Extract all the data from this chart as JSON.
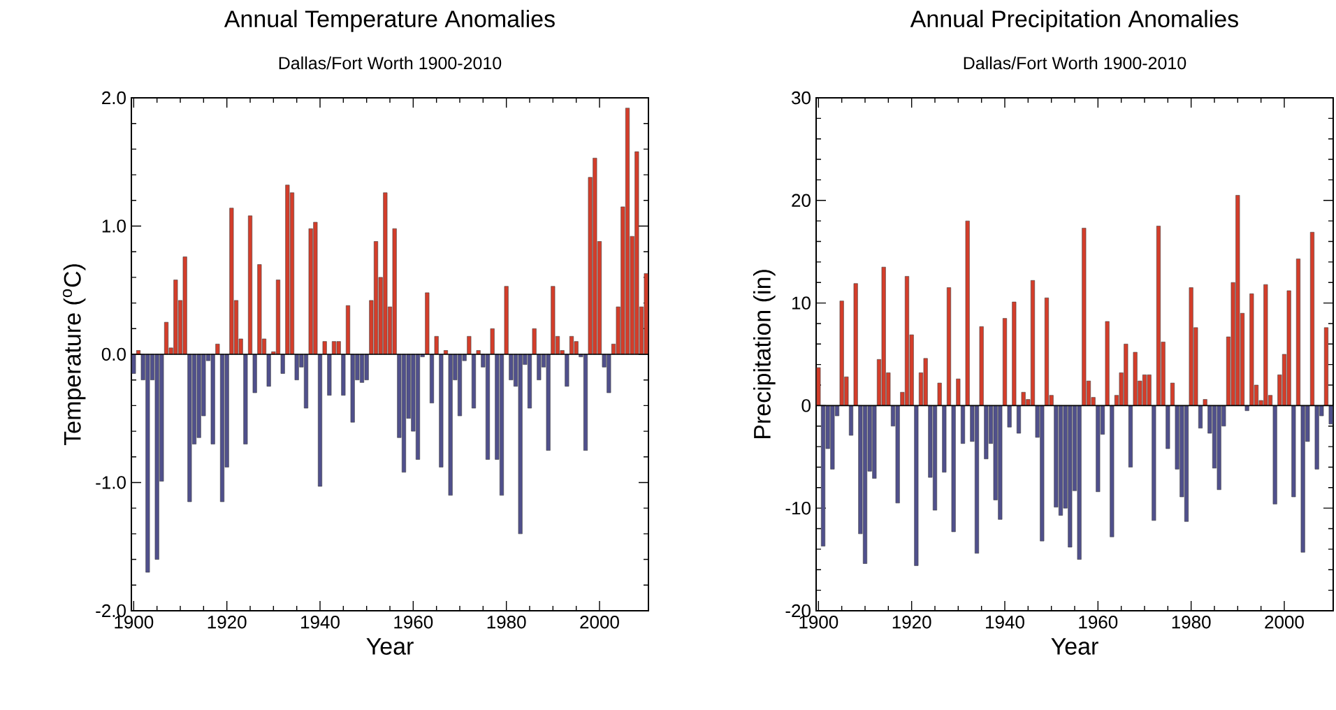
{
  "chart_data": [
    {
      "type": "bar",
      "title": "Annual Temperature Anomalies",
      "subtitle": "Dallas/Fort Worth 1900-2010",
      "xlabel": "Year",
      "ylabel": "Temperature ($^{o}$C)",
      "xlim": [
        1899.5,
        2010.5
      ],
      "xticks": [
        1900,
        1920,
        1940,
        1960,
        1980,
        2000
      ],
      "ylim": [
        -2,
        2
      ],
      "yticks": [
        {
          "value": -2,
          "label": "-2.0"
        },
        {
          "value": -1,
          "label": "-1.0"
        },
        {
          "value": 0,
          "label": "0.0"
        },
        {
          "value": 1,
          "label": "1.0"
        },
        {
          "value": 2,
          "label": "2.0"
        }
      ],
      "x": [
        1900,
        1901,
        1902,
        1903,
        1904,
        1905,
        1906,
        1907,
        1908,
        1909,
        1910,
        1911,
        1912,
        1913,
        1914,
        1915,
        1916,
        1917,
        1918,
        1919,
        1920,
        1921,
        1922,
        1923,
        1924,
        1925,
        1926,
        1927,
        1928,
        1929,
        1930,
        1931,
        1932,
        1933,
        1934,
        1935,
        1936,
        1937,
        1938,
        1939,
        1940,
        1941,
        1942,
        1943,
        1944,
        1945,
        1946,
        1947,
        1948,
        1949,
        1950,
        1951,
        1952,
        1953,
        1954,
        1955,
        1956,
        1957,
        1958,
        1959,
        1960,
        1961,
        1962,
        1963,
        1964,
        1965,
        1966,
        1967,
        1968,
        1969,
        1970,
        1971,
        1972,
        1973,
        1974,
        1975,
        1976,
        1977,
        1978,
        1979,
        1980,
        1981,
        1982,
        1983,
        1984,
        1985,
        1986,
        1987,
        1988,
        1989,
        1990,
        1991,
        1992,
        1993,
        1994,
        1995,
        1996,
        1997,
        1998,
        1999,
        2000,
        2001,
        2002,
        2003,
        2004,
        2005,
        2006,
        2007,
        2008,
        2009,
        2010
      ],
      "values": [
        -0.15,
        0.03,
        -0.2,
        -1.7,
        -0.2,
        -1.6,
        -0.99,
        0.25,
        0.05,
        0.58,
        0.42,
        0.76,
        -1.15,
        -0.7,
        -0.65,
        -0.48,
        -0.05,
        -0.7,
        0.08,
        -1.15,
        -0.88,
        1.14,
        0.42,
        0.12,
        -0.7,
        1.08,
        -0.3,
        0.7,
        0.12,
        -0.25,
        0.02,
        0.58,
        -0.15,
        1.32,
        1.26,
        -0.2,
        -0.1,
        -0.42,
        0.98,
        1.03,
        -1.03,
        0.1,
        -0.32,
        0.1,
        0.1,
        -0.32,
        0.38,
        -0.53,
        -0.2,
        -0.22,
        -0.2,
        0.42,
        0.88,
        0.6,
        1.26,
        0.37,
        0.98,
        -0.65,
        -0.92,
        -0.5,
        -0.6,
        -0.82,
        -0.02,
        0.48,
        -0.38,
        0.14,
        -0.88,
        0.03,
        -1.1,
        -0.2,
        -0.48,
        -0.05,
        0.14,
        -0.42,
        0.03,
        -0.1,
        -0.82,
        0.2,
        -0.82,
        -1.1,
        0.53,
        -0.2,
        -0.25,
        -1.4,
        -0.08,
        -0.42,
        0.2,
        -0.2,
        -0.1,
        -0.75,
        0.53,
        0.14,
        0.03,
        -0.25,
        0.14,
        0.1,
        -0.02,
        -0.75,
        1.38,
        1.53,
        0.88,
        -0.1,
        -0.3,
        0.08,
        0.37,
        1.15,
        1.92,
        0.92,
        1.58,
        0.37,
        0.63
      ],
      "colors": [
        "#50508c",
        "#d43d2a",
        "#50508c",
        "#50508c",
        "#50508c",
        "#50508c",
        "#50508c",
        "#d43d2a",
        "#d43d2a",
        "#d43d2a",
        "#d43d2a",
        "#d43d2a",
        "#50508c",
        "#50508c",
        "#50508c",
        "#50508c",
        "#50508c",
        "#50508c",
        "#d43d2a",
        "#50508c",
        "#50508c",
        "#d43d2a",
        "#d43d2a",
        "#d43d2a",
        "#50508c",
        "#d43d2a",
        "#50508c",
        "#d43d2a",
        "#d43d2a",
        "#50508c",
        "#d43d2a",
        "#d43d2a",
        "#50508c",
        "#d43d2a",
        "#d43d2a",
        "#50508c",
        "#50508c",
        "#50508c",
        "#d43d2a",
        "#d43d2a",
        "#50508c",
        "#d43d2a",
        "#50508c",
        "#d43d2a",
        "#d43d2a",
        "#50508c",
        "#d43d2a",
        "#50508c",
        "#50508c",
        "#50508c",
        "#50508c",
        "#d43d2a",
        "#d43d2a",
        "#d43d2a",
        "#d43d2a",
        "#d43d2a",
        "#d43d2a",
        "#50508c",
        "#50508c",
        "#50508c",
        "#50508c",
        "#50508c",
        "#50508c",
        "#d43d2a",
        "#50508c",
        "#d43d2a",
        "#50508c",
        "#d43d2a",
        "#50508c",
        "#50508c",
        "#50508c",
        "#50508c",
        "#d43d2a",
        "#50508c",
        "#d43d2a",
        "#50508c",
        "#50508c",
        "#d43d2a",
        "#50508c",
        "#50508c",
        "#d43d2a",
        "#50508c",
        "#50508c",
        "#50508c",
        "#50508c",
        "#50508c",
        "#d43d2a",
        "#50508c",
        "#50508c",
        "#50508c",
        "#d43d2a",
        "#d43d2a",
        "#d43d2a",
        "#50508c",
        "#d43d2a",
        "#d43d2a",
        "#50508c",
        "#50508c",
        "#d43d2a",
        "#d43d2a",
        "#d43d2a",
        "#50508c",
        "#50508c",
        "#d43d2a",
        "#d43d2a",
        "#d43d2a",
        "#d43d2a",
        "#d43d2a",
        "#d43d2a",
        "#d43d2a",
        "#d43d2a"
      ]
    },
    {
      "type": "bar",
      "title": "Annual Precipitation Anomalies",
      "subtitle": "Dallas/Fort Worth 1900-2010",
      "xlabel": "Year",
      "ylabel": "Precipitation (in)",
      "xlim": [
        1899.5,
        2010.5
      ],
      "xticks": [
        1900,
        1920,
        1940,
        1960,
        1980,
        2000
      ],
      "ylim": [
        -20,
        30
      ],
      "yticks": [
        -20,
        -10,
        0,
        10,
        20,
        30
      ],
      "x": [
        1900,
        1901,
        1902,
        1903,
        1904,
        1905,
        1906,
        1907,
        1908,
        1909,
        1910,
        1911,
        1912,
        1913,
        1914,
        1915,
        1916,
        1917,
        1918,
        1919,
        1920,
        1921,
        1922,
        1923,
        1924,
        1925,
        1926,
        1927,
        1928,
        1929,
        1930,
        1931,
        1932,
        1933,
        1934,
        1935,
        1936,
        1937,
        1938,
        1939,
        1940,
        1941,
        1942,
        1943,
        1944,
        1945,
        1946,
        1947,
        1948,
        1949,
        1950,
        1951,
        1952,
        1953,
        1954,
        1955,
        1956,
        1957,
        1958,
        1959,
        1960,
        1961,
        1962,
        1963,
        1964,
        1965,
        1966,
        1967,
        1968,
        1969,
        1970,
        1971,
        1972,
        1973,
        1974,
        1975,
        1976,
        1977,
        1978,
        1979,
        1980,
        1981,
        1982,
        1983,
        1984,
        1985,
        1986,
        1987,
        1988,
        1989,
        1990,
        1991,
        1992,
        1993,
        1994,
        1995,
        1996,
        1997,
        1998,
        1999,
        2000,
        2001,
        2002,
        2003,
        2004,
        2005,
        2006,
        2007,
        2008,
        2009,
        2010
      ],
      "values": [
        3.7,
        -13.7,
        -4.2,
        -6.2,
        -1.0,
        10.2,
        2.8,
        -2.9,
        11.9,
        -12.5,
        -15.4,
        -6.4,
        -7.1,
        4.5,
        13.5,
        3.2,
        -2.0,
        -9.5,
        1.3,
        12.6,
        6.9,
        -15.6,
        3.2,
        4.6,
        -7.0,
        -10.2,
        2.2,
        -6.5,
        11.5,
        -12.3,
        2.6,
        -3.7,
        18.0,
        -3.5,
        -14.4,
        7.7,
        -5.2,
        -3.7,
        -9.2,
        -11.1,
        8.5,
        -2.1,
        10.1,
        -2.7,
        1.3,
        0.6,
        12.2,
        -3.1,
        -13.2,
        10.5,
        1.0,
        -9.9,
        -10.7,
        -10.0,
        -13.8,
        -8.3,
        -15.0,
        17.3,
        2.4,
        0.8,
        -8.4,
        -2.8,
        8.2,
        -12.8,
        1.0,
        3.2,
        6.0,
        -6.0,
        5.2,
        2.4,
        3.0,
        3.0,
        -11.2,
        17.5,
        6.2,
        -4.2,
        2.2,
        -6.2,
        -8.9,
        -11.3,
        11.5,
        7.6,
        -2.2,
        0.6,
        -2.7,
        -6.1,
        -8.2,
        -2.0,
        6.7,
        12.0,
        20.5,
        9.0,
        -0.5,
        10.9,
        2.0,
        0.5,
        11.8,
        1.0,
        -9.6,
        3.0,
        5.0,
        11.2,
        -8.9,
        14.3,
        -14.3,
        -3.5,
        16.9,
        -6.2,
        -1.0,
        7.6,
        -1.8
      ],
      "colors": [
        "#d43d2a",
        "#50508c",
        "#50508c",
        "#50508c",
        "#50508c",
        "#d43d2a",
        "#d43d2a",
        "#50508c",
        "#d43d2a",
        "#50508c",
        "#50508c",
        "#50508c",
        "#50508c",
        "#d43d2a",
        "#d43d2a",
        "#d43d2a",
        "#50508c",
        "#50508c",
        "#d43d2a",
        "#d43d2a",
        "#d43d2a",
        "#50508c",
        "#d43d2a",
        "#d43d2a",
        "#50508c",
        "#50508c",
        "#d43d2a",
        "#50508c",
        "#d43d2a",
        "#50508c",
        "#d43d2a",
        "#50508c",
        "#d43d2a",
        "#50508c",
        "#50508c",
        "#d43d2a",
        "#50508c",
        "#50508c",
        "#50508c",
        "#50508c",
        "#d43d2a",
        "#50508c",
        "#d43d2a",
        "#50508c",
        "#d43d2a",
        "#d43d2a",
        "#d43d2a",
        "#50508c",
        "#50508c",
        "#d43d2a",
        "#d43d2a",
        "#50508c",
        "#50508c",
        "#50508c",
        "#50508c",
        "#50508c",
        "#50508c",
        "#d43d2a",
        "#d43d2a",
        "#d43d2a",
        "#50508c",
        "#50508c",
        "#d43d2a",
        "#50508c",
        "#d43d2a",
        "#d43d2a",
        "#d43d2a",
        "#50508c",
        "#d43d2a",
        "#d43d2a",
        "#d43d2a",
        "#d43d2a",
        "#50508c",
        "#d43d2a",
        "#d43d2a",
        "#50508c",
        "#d43d2a",
        "#50508c",
        "#50508c",
        "#50508c",
        "#d43d2a",
        "#d43d2a",
        "#50508c",
        "#d43d2a",
        "#50508c",
        "#50508c",
        "#50508c",
        "#50508c",
        "#d43d2a",
        "#d43d2a",
        "#d43d2a",
        "#d43d2a",
        "#50508c",
        "#d43d2a",
        "#d43d2a",
        "#d43d2a",
        "#d43d2a",
        "#d43d2a",
        "#50508c",
        "#d43d2a",
        "#d43d2a",
        "#d43d2a",
        "#50508c",
        "#d43d2a",
        "#50508c",
        "#50508c",
        "#d43d2a",
        "#50508c",
        "#50508c",
        "#d43d2a",
        "#50508c"
      ]
    }
  ]
}
